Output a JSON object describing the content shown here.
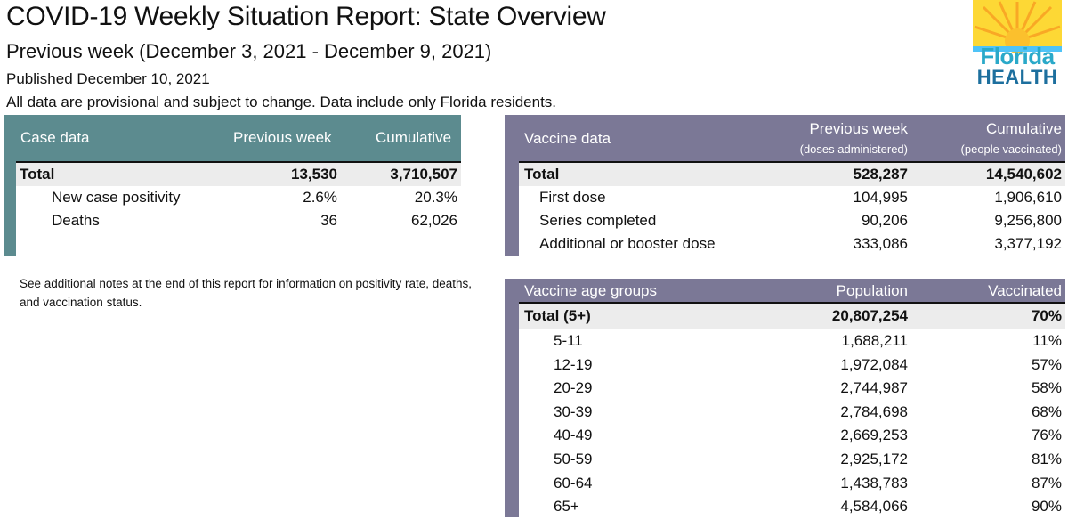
{
  "header": {
    "title": "COVID-19 Weekly Situation Report: State Overview",
    "subtitle": "Previous week (December 3, 2021 - December 9, 2021)",
    "published": "Published December 10, 2021",
    "disclaimer": "All data are provisional and subject to change. Data include only Florida residents."
  },
  "logo": {
    "line1": "Florida",
    "line2": "HEALTH"
  },
  "case_table": {
    "title": "Case data",
    "col1": "Previous week",
    "col2": "Cumulative",
    "rows": [
      {
        "label": "Total",
        "prev": "13,530",
        "cum": "3,710,507"
      },
      {
        "label": "New case positivity",
        "prev": "2.6%",
        "cum": "20.3%"
      },
      {
        "label": "Deaths",
        "prev": "36",
        "cum": "62,026"
      }
    ]
  },
  "note": "See additional notes at the end of this report for information on positivity rate, deaths, and vaccination status.",
  "vaccine_table": {
    "title": "Vaccine data",
    "col1": "Previous week",
    "col1_sub": "(doses administered)",
    "col2": "Cumulative",
    "col2_sub": "(people vaccinated)",
    "rows": [
      {
        "label": "Total",
        "prev": "528,287",
        "cum": "14,540,602"
      },
      {
        "label": "First dose",
        "prev": "104,995",
        "cum": "1,906,610"
      },
      {
        "label": "Series completed",
        "prev": "90,206",
        "cum": "9,256,800"
      },
      {
        "label": "Additional or booster dose",
        "prev": "333,086",
        "cum": "3,377,192"
      }
    ]
  },
  "age_table": {
    "title": "Vaccine age groups",
    "col1": "Population",
    "col2": "Vaccinated",
    "rows": [
      {
        "label": "Total (5+)",
        "pop": "20,807,254",
        "vac": "70%"
      },
      {
        "label": "5-11",
        "pop": "1,688,211",
        "vac": "11%"
      },
      {
        "label": "12-19",
        "pop": "1,972,084",
        "vac": "57%"
      },
      {
        "label": "20-29",
        "pop": "2,744,987",
        "vac": "58%"
      },
      {
        "label": "30-39",
        "pop": "2,784,698",
        "vac": "68%"
      },
      {
        "label": "40-49",
        "pop": "2,669,253",
        "vac": "76%"
      },
      {
        "label": "50-59",
        "pop": "2,925,172",
        "vac": "81%"
      },
      {
        "label": "60-64",
        "pop": "1,438,783",
        "vac": "87%"
      },
      {
        "label": "65+",
        "pop": "4,584,066",
        "vac": "90%"
      }
    ]
  },
  "colors": {
    "case_header": "#5c8b8f",
    "vaccine_header": "#7b7896",
    "total_row": "#ececec"
  }
}
